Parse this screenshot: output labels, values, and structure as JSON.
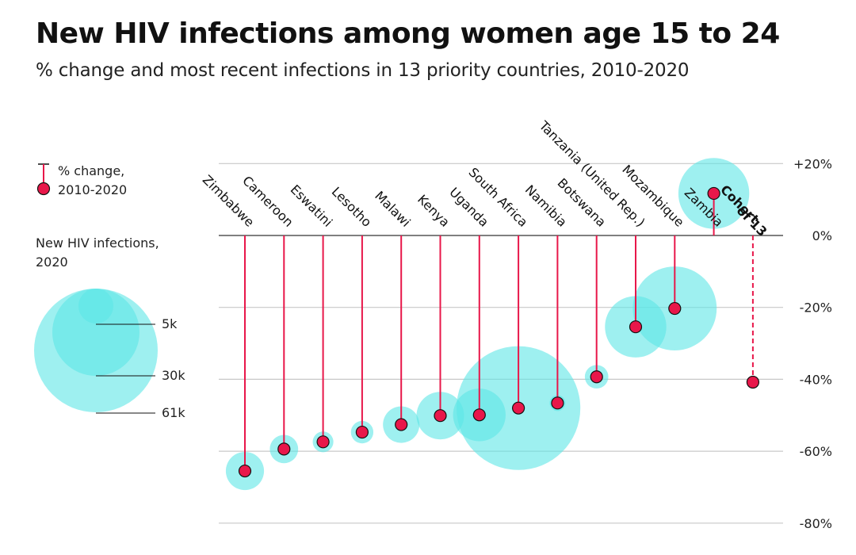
{
  "chart_data": {
    "type": "scatter",
    "subtype": "lollipop-bubble",
    "title": "New HIV infections among women age 15 to 24",
    "subtitle": "% change and most recent infections in 13 priority countries, 2010-2020",
    "ylabel": "% change, 2010-2020",
    "ylim": [
      -80,
      20
    ],
    "yticks": [
      20,
      0,
      -20,
      -40,
      -60,
      -80
    ],
    "ytick_labels": [
      "+20%",
      "0%",
      "-20%",
      "-40%",
      "-60%",
      "-80%"
    ],
    "grid": true,
    "colors": {
      "stem": "#e8174a",
      "dot": "#e8174a",
      "bubble": "#5ee6e6",
      "grid": "#c8c8c8",
      "zero_line": "#333333"
    },
    "categories": [
      "Zimbabwe",
      "Cameroon",
      "Eswatini",
      "Lesotho",
      "Malawi",
      "Kenya",
      "Uganda",
      "South Africa",
      "Namibia",
      "Botswana",
      "Tanzania (United Rep.)",
      "Mozambique",
      "Zambia",
      "Cohort of 13"
    ],
    "series": [
      {
        "name": "% change, 2010-2020",
        "values": [
          -65.5,
          -59.4,
          -57.4,
          -54.7,
          -52.6,
          -50.1,
          -49.9,
          -48.0,
          -46.6,
          -39.3,
          -25.4,
          -20.3,
          11.7,
          -40.8
        ]
      },
      {
        "name": "New HIV infections, 2020 (thousands)",
        "values": [
          5.8,
          3.2,
          1.7,
          2.0,
          5.3,
          9.0,
          11.0,
          61.0,
          1.0,
          2.2,
          15.0,
          28.0,
          20.0,
          null
        ]
      }
    ],
    "highlight": {
      "category": "Cohort of 13",
      "style": "dashed stem, no bubble, bold label"
    },
    "legend": {
      "placement": "left",
      "stem_label_line1": "% change,",
      "stem_label_line2": "2010-2020",
      "size_title_line1": "New HIV infections,",
      "size_title_line2": "2020",
      "size_values_k": [
        5,
        30,
        61
      ],
      "size_labels": [
        "5k",
        "30k",
        "61k"
      ]
    }
  }
}
